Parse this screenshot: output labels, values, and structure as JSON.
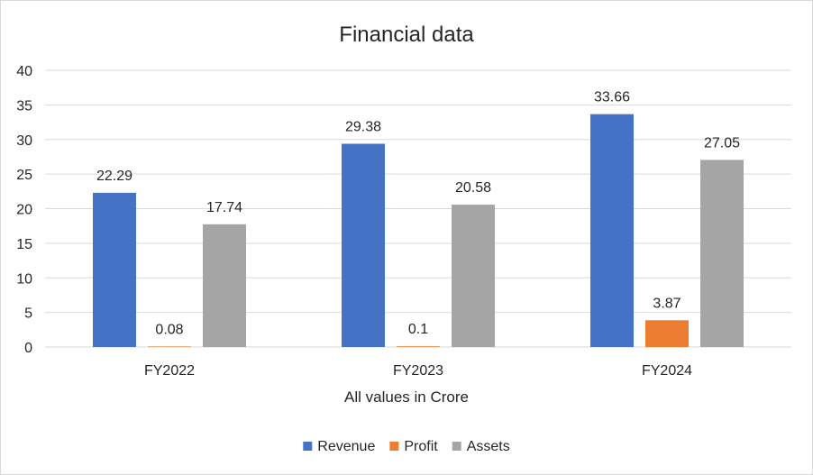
{
  "chart_data": {
    "type": "bar",
    "title": "Financial data",
    "xlabel": "All values in Crore",
    "ylabel": "",
    "categories": [
      "FY2022",
      "FY2023",
      "FY2024"
    ],
    "ylim": [
      0,
      40
    ],
    "yticks": [
      0,
      5,
      10,
      15,
      20,
      25,
      30,
      35,
      40
    ],
    "grid": true,
    "legend_position": "bottom",
    "series": [
      {
        "name": "Revenue",
        "color": "#4472C4",
        "values": [
          22.29,
          29.38,
          33.66
        ]
      },
      {
        "name": "Profit",
        "color": "#ED7D31",
        "values": [
          0.08,
          0.1,
          3.87
        ]
      },
      {
        "name": "Assets",
        "color": "#A5A5A5",
        "values": [
          17.74,
          20.58,
          27.05
        ]
      }
    ]
  }
}
